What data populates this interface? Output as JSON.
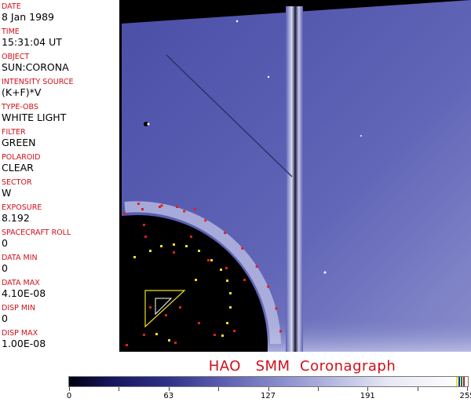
{
  "info_panel": {
    "fields": [
      {
        "label": "DATE",
        "value": "8 Jan 1989"
      },
      {
        "label": "TIME",
        "value": "15:31:04 UT"
      },
      {
        "label": "OBJECT",
        "value": "SUN:CORONA"
      },
      {
        "label": "INTENSITY SOURCE",
        "value": "(K+F)*V"
      },
      {
        "label": "TYPE-OBS",
        "value": "WHITE LIGHT"
      },
      {
        "label": "FILTER",
        "value": "GREEN"
      },
      {
        "label": "POLAROID",
        "value": "CLEAR"
      },
      {
        "label": "SECTOR",
        "value": "W"
      },
      {
        "label": "EXPOSURE",
        "value": "8.192"
      },
      {
        "label": "SPACECRAFT ROLL",
        "value": "0"
      },
      {
        "label": "DATA MIN",
        "value": "0"
      },
      {
        "label": "DATA MAX",
        "value": "4.10E-08"
      },
      {
        "label": "DISP MIN",
        "value": "0"
      },
      {
        "label": "DISP MAX",
        "value": "1.00E-08"
      }
    ]
  },
  "title": "HAO   SMM  Coronagraph",
  "colorbar": {
    "tick_labels": [
      "0",
      "63",
      "127",
      "191",
      "255"
    ],
    "colors": {
      "label": "#d0101a",
      "field": "#5a5fb0",
      "occulter": "#000000"
    }
  }
}
